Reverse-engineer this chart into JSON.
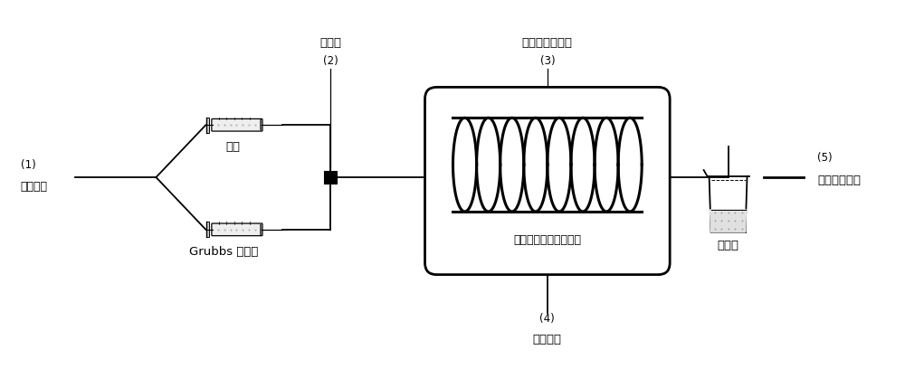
{
  "labels": {
    "mixer_top": "混令器",
    "mixer_num": "(2)",
    "reactor_top": "内构件微反应器",
    "reactor_num": "(3)",
    "monomer": "单体",
    "catalyst": "Grubbs 催化剂",
    "device1_num": "(1)",
    "device1": "进样装置",
    "heater_num": "(4)",
    "heater": "加热装置",
    "product_label": "聚合物",
    "receiver_num": "(5)",
    "receiver": "物料接收装置",
    "reactor_text": "金属催化开环易位聚合"
  },
  "colors": {
    "black": "#000000",
    "white": "#ffffff",
    "light_gray": "#f0f0f0",
    "beaker_fill": "#e8e8e8"
  }
}
